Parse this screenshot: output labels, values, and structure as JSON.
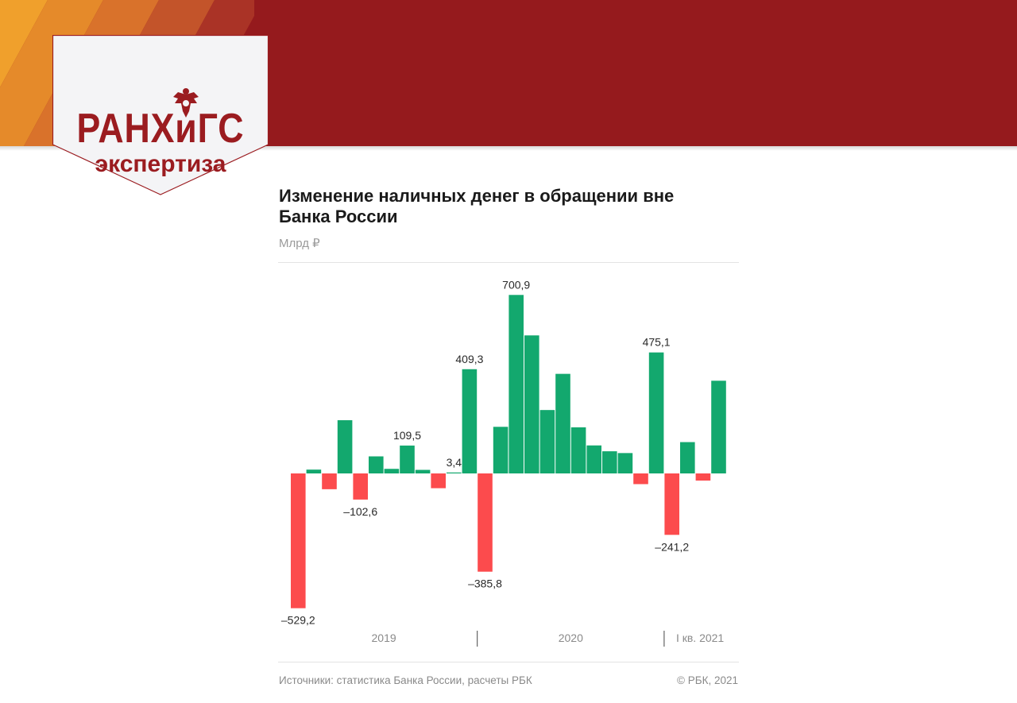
{
  "header": {
    "logo_main": "РАНХиГС",
    "logo_sub": "экспертиза",
    "colors": {
      "banner": "#951a1d",
      "logo": "#9b1c20",
      "badge_bg": "#f4f4f6"
    }
  },
  "chart_data": {
    "type": "bar",
    "title": "Изменение наличных денег в обращении вне Банка России",
    "subtitle": "Млрд ₽",
    "unit": "",
    "values": [
      -529.2,
      15,
      -62,
      209,
      -102.6,
      67,
      18,
      109.5,
      14,
      -58,
      3.4,
      409.3,
      -385.8,
      183,
      700.9,
      542,
      249,
      391,
      181,
      110,
      87,
      80,
      -42,
      475.1,
      -241.2,
      123,
      -28,
      364
    ],
    "data_labels": [
      {
        "index": 0,
        "text": "–529,2"
      },
      {
        "index": 4,
        "text": "–102,6"
      },
      {
        "index": 7,
        "text": "109,5"
      },
      {
        "index": 10,
        "text": "3,4"
      },
      {
        "index": 11,
        "text": "409,3"
      },
      {
        "index": 12,
        "text": "–385,8"
      },
      {
        "index": 14,
        "text": "700,9"
      },
      {
        "index": 23,
        "text": "475,1"
      },
      {
        "index": 24,
        "text": "–241,2"
      }
    ],
    "period_groups": [
      {
        "label": "2019",
        "start": 0,
        "end": 11
      },
      {
        "label": "2020",
        "start": 12,
        "end": 23
      },
      {
        "label": "I кв. 2021",
        "start": 24,
        "end": 27
      }
    ],
    "ylim": [
      -560,
      740
    ],
    "colors": {
      "positive": "#13a86e",
      "negative": "#fc4b4d"
    },
    "grid": false,
    "legend": "none"
  },
  "footer": {
    "source": "Источники: статистика Банка России, расчеты РБК",
    "copyright": "© РБК, 2021"
  }
}
